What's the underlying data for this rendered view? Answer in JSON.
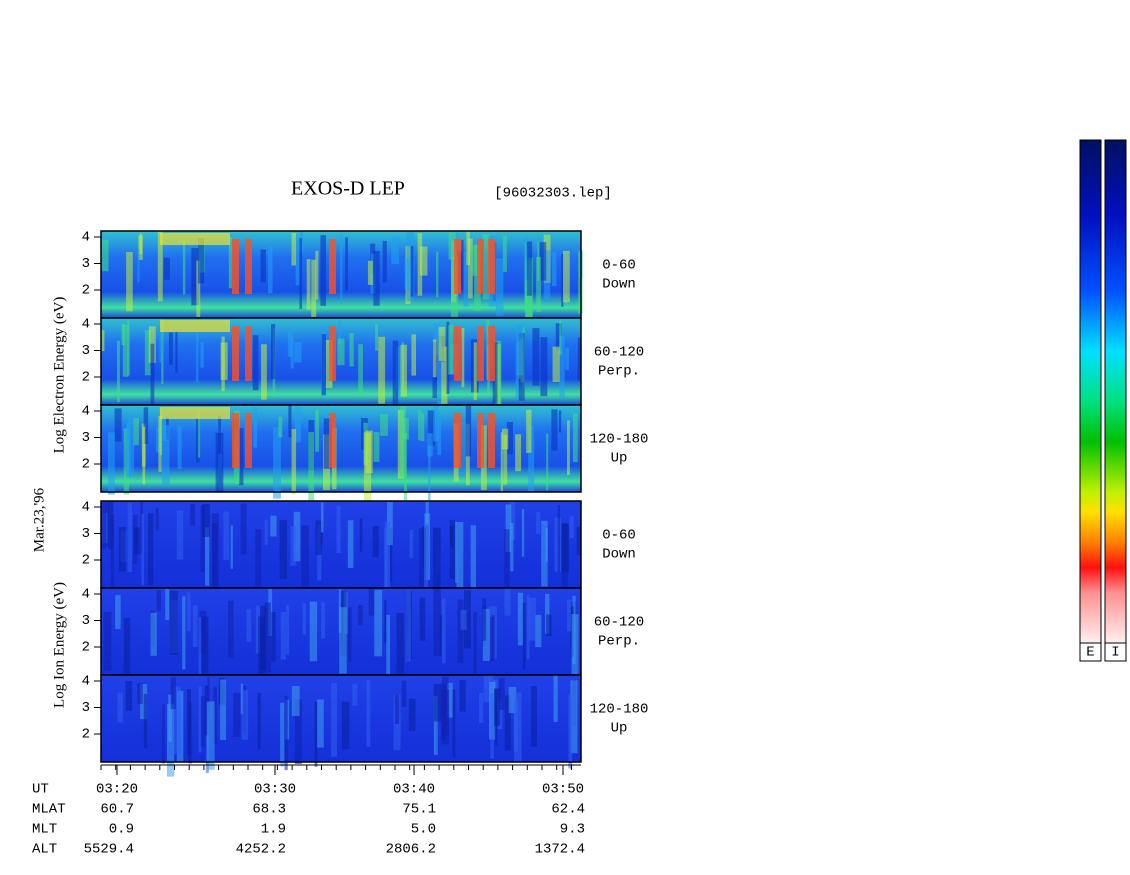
{
  "header": {
    "title": "EXOS-D LEP",
    "file": "[96032303.lep]"
  },
  "date": "Mar.23,'96",
  "electron": {
    "label": "Log  Electron  Energy (eV)",
    "panels": [
      {
        "range": "0-60",
        "direction": "Down",
        "ticks": [
          "4",
          "3",
          "2"
        ]
      },
      {
        "range": "60-120",
        "direction": "Perp.",
        "ticks": [
          "4",
          "3",
          "2"
        ]
      },
      {
        "range": "120-180",
        "direction": "Up",
        "ticks": [
          "4",
          "3",
          "2"
        ]
      }
    ]
  },
  "ion": {
    "label": "Log  Ion  Energy (eV)",
    "panels": [
      {
        "range": "0-60",
        "direction": "Down",
        "ticks": [
          "4",
          "3",
          "2"
        ]
      },
      {
        "range": "60-120",
        "direction": "Perp.",
        "ticks": [
          "4",
          "3",
          "2"
        ]
      },
      {
        "range": "120-180",
        "direction": "Up",
        "ticks": [
          "4",
          "3",
          "2"
        ]
      }
    ]
  },
  "footer": {
    "rows": [
      {
        "label": "UT",
        "values": [
          "03:20",
          "03:30",
          "03:40",
          "03:50"
        ]
      },
      {
        "label": "MLAT",
        "values": [
          "60.7",
          "68.3",
          "75.1",
          "62.4"
        ]
      },
      {
        "label": "MLT",
        "values": [
          "0.9",
          "1.9",
          "5.0",
          "9.3"
        ]
      },
      {
        "label": "ALT",
        "values": [
          "5529.4",
          "4252.2",
          "2806.2",
          "1372.4"
        ]
      }
    ]
  },
  "colorbars": [
    "E",
    "I"
  ]
}
